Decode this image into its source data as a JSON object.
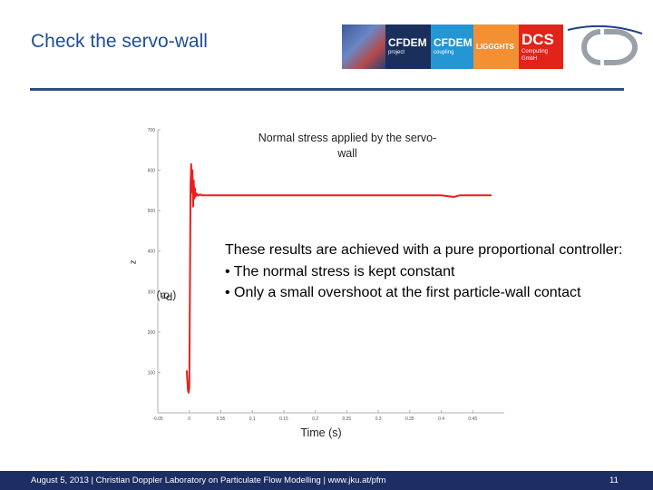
{
  "slide": {
    "title": "Check the servo-wall"
  },
  "logos": {
    "cfdem_project": {
      "name": "CFDEM",
      "sub": "project"
    },
    "cfdem_coupling": {
      "name": "CFDEM",
      "sub": "coupling"
    },
    "liggghts": {
      "name": "LIGGGHTS"
    },
    "dcs": {
      "name": "DCS",
      "sub": "Computing GmbH"
    },
    "cd_logo_icon": "cd-logo-icon"
  },
  "chart_data": {
    "type": "line",
    "title": "Normal stress applied by the servo-wall",
    "xlabel": "Time (s)",
    "ylabel_main": "σ",
    "ylabel_sub": "z",
    "ylabel_rest": "(Pa)",
    "xlim": [
      -0.05,
      0.5
    ],
    "ylim": [
      0,
      700
    ],
    "xticks": [
      -0.05,
      0,
      0.05,
      0.1,
      0.15,
      0.2,
      0.25,
      0.3,
      0.35,
      0.4,
      0.45
    ],
    "xtick_labels": [
      "-0.05",
      "0",
      "0.05",
      "0.1",
      "0.15",
      "0.2",
      "0.25",
      "0.3",
      "0.35",
      "0.4",
      "0.45"
    ],
    "yticks": [
      100,
      200,
      300,
      400,
      500,
      600,
      700
    ],
    "ytick_labels": [
      "100",
      "200",
      "300",
      "400",
      "500",
      "600",
      "700"
    ],
    "series": [
      {
        "color": "#e8201e",
        "x": [
          -0.004,
          -0.003,
          -0.002,
          -0.001,
          0.0,
          0.001,
          0.002,
          0.003,
          0.004,
          0.005,
          0.006,
          0.007,
          0.008,
          0.009,
          0.01,
          0.012,
          0.014,
          0.017,
          0.02,
          0.03,
          0.1,
          0.2,
          0.3,
          0.4,
          0.42,
          0.43,
          0.48
        ],
        "y": [
          105,
          80,
          55,
          50,
          60,
          300,
          560,
          615,
          545,
          600,
          510,
          575,
          530,
          555,
          535,
          542,
          537,
          540,
          538,
          538,
          538,
          538,
          538,
          538,
          534,
          538,
          538
        ]
      }
    ],
    "grid": false,
    "legend": "none"
  },
  "annotation": {
    "line1": "These results are achieved with a pure proportional controller:",
    "bullet1": "• The normal stress is kept constant",
    "bullet2": "• Only a small overshoot at the first particle-wall contact"
  },
  "footer": {
    "text": "August 5, 2013 | Christian Doppler Laboratory on Particulate Flow Modelling | www.jku.at/pfm",
    "page": "11"
  }
}
